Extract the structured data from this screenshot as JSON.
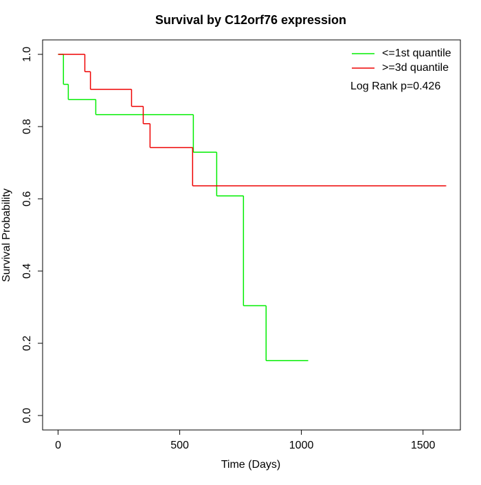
{
  "chart_data": {
    "type": "step",
    "title": "Survival by C12orf76 expression",
    "x_label": "Time (Days)",
    "y_label": "Survival Probability",
    "annotation": "Log Rank p=0.426",
    "xlim": [
      -63.6,
      1653.6
    ],
    "ylim": [
      -0.04,
      1.04
    ],
    "xticks": [
      0,
      500,
      1000,
      1500
    ],
    "yticks": [
      {
        "value": 0,
        "label": "0.0"
      },
      0.2,
      0.4,
      0.6,
      0.8,
      {
        "value": 1,
        "label": "1.0"
      }
    ],
    "legend": "top-right",
    "series": [
      {
        "name": "<=1st quantile",
        "color": "#00ee00",
        "x": [
          0,
          22,
          42,
          155,
          556,
          652,
          762,
          855,
          1027
        ],
        "values": [
          1,
          0.917,
          0.875,
          0.833,
          0.729,
          0.608,
          0.304,
          0.152,
          0.152
        ]
      },
      {
        "name": ">=3d quantile",
        "color": "#ee0000",
        "x": [
          0,
          110,
          133,
          302,
          350,
          378,
          553,
          1594
        ],
        "values": [
          1,
          0.952,
          0.903,
          0.856,
          0.808,
          0.742,
          0.636,
          0.636
        ]
      }
    ]
  }
}
